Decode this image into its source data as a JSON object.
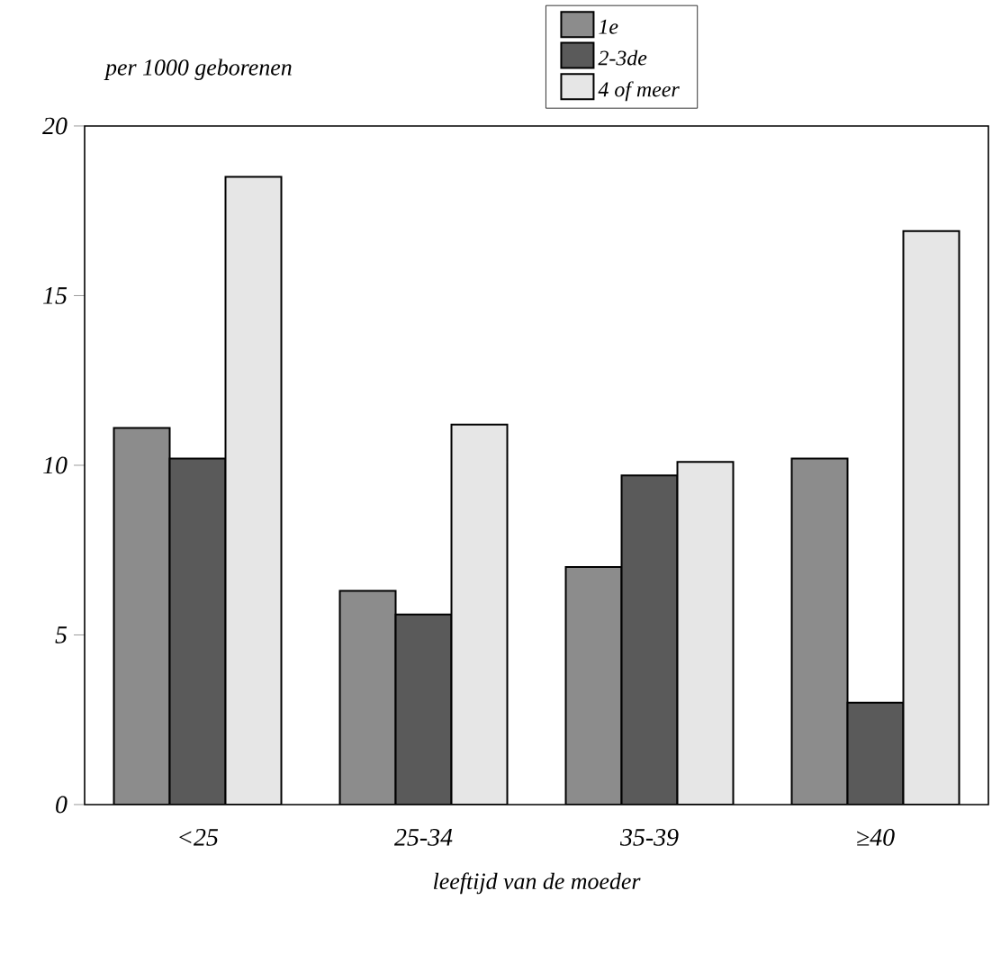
{
  "chart_data": {
    "type": "bar",
    "ylabel": "per 1000 geborenen",
    "xlabel": "leeftijd van de moeder",
    "categories": [
      "<25",
      "25-34",
      "35-39",
      "≥40"
    ],
    "series": [
      {
        "name": "1e",
        "color": "#8c8c8c",
        "values": [
          11.1,
          6.3,
          7.0,
          10.2
        ]
      },
      {
        "name": "2-3de",
        "color": "#5a5a5a",
        "values": [
          10.2,
          5.6,
          9.7,
          3.0
        ]
      },
      {
        "name": "4 of meer",
        "color": "#e6e6e6",
        "values": [
          18.5,
          11.2,
          10.1,
          16.9
        ]
      }
    ],
    "ylim": [
      0,
      20
    ],
    "yticks": [
      0,
      5,
      10,
      15,
      20
    ],
    "grid": false,
    "legend": "top"
  }
}
